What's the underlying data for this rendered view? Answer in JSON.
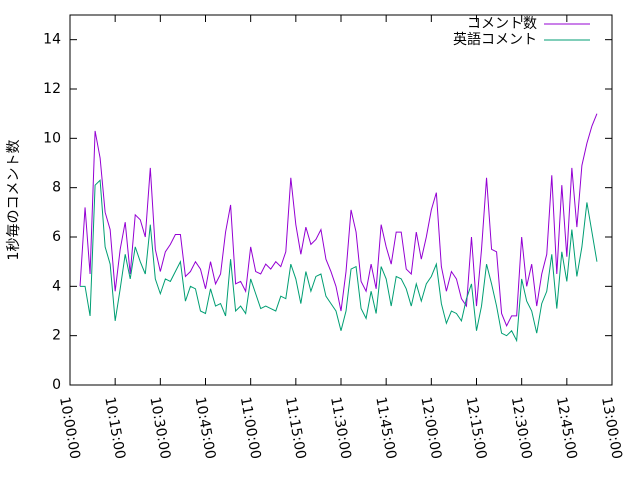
{
  "chart_data": {
    "type": "line",
    "ylabel": "1秒毎のコメント数",
    "x": [
      "10:03:20",
      "10:05:00",
      "10:06:40",
      "10:08:20",
      "10:10:00",
      "10:11:40",
      "10:13:20",
      "10:15:00",
      "10:16:40",
      "10:18:20",
      "10:20:00",
      "10:21:40",
      "10:23:20",
      "10:25:00",
      "10:26:40",
      "10:28:20",
      "10:30:00",
      "10:31:40",
      "10:33:20",
      "10:35:00",
      "10:36:40",
      "10:38:20",
      "10:40:00",
      "10:41:40",
      "10:43:20",
      "10:45:00",
      "10:46:40",
      "10:48:20",
      "10:50:00",
      "10:51:40",
      "10:53:20",
      "10:55:00",
      "10:56:40",
      "10:58:20",
      "11:00:00",
      "11:01:40",
      "11:03:20",
      "11:05:00",
      "11:06:40",
      "11:08:20",
      "11:10:00",
      "11:11:40",
      "11:13:20",
      "11:15:00",
      "11:16:40",
      "11:18:20",
      "11:20:00",
      "11:21:40",
      "11:23:20",
      "11:25:00",
      "11:26:40",
      "11:28:20",
      "11:30:00",
      "11:31:40",
      "11:33:20",
      "11:35:00",
      "11:36:40",
      "11:38:20",
      "11:40:00",
      "11:41:40",
      "11:43:20",
      "11:45:00",
      "11:46:40",
      "11:48:20",
      "11:50:00",
      "11:51:40",
      "11:53:20",
      "11:55:00",
      "11:56:40",
      "11:58:20",
      "12:00:00",
      "12:01:40",
      "12:03:20",
      "12:05:00",
      "12:06:40",
      "12:08:20",
      "12:10:00",
      "12:11:40",
      "12:13:20",
      "12:15:00",
      "12:16:40",
      "12:18:20",
      "12:20:00",
      "12:21:40",
      "12:23:20",
      "12:25:00",
      "12:26:40",
      "12:28:20",
      "12:30:00",
      "12:31:40",
      "12:33:20",
      "12:35:00",
      "12:36:40",
      "12:38:20",
      "12:40:00",
      "12:41:40",
      "12:43:20",
      "12:45:00",
      "12:46:40",
      "12:48:20",
      "12:50:00",
      "12:51:40",
      "12:53:20",
      "12:55:00"
    ],
    "series": [
      {
        "name": "コメント数",
        "color": "#9400d3",
        "values": [
          4,
          7.2,
          4.5,
          10.3,
          9.2,
          7,
          6.3,
          3.8,
          5.5,
          6.6,
          4.5,
          6.9,
          6.7,
          6,
          8.8,
          5.5,
          4.6,
          5.4,
          5.7,
          6.1,
          6.1,
          4.4,
          4.6,
          5,
          4.7,
          3.9,
          5,
          4.1,
          4.5,
          6.2,
          7.3,
          4.1,
          4.2,
          3.8,
          5.6,
          4.6,
          4.5,
          4.9,
          4.7,
          5,
          4.8,
          5.4,
          8.4,
          6.5,
          5.3,
          6.4,
          5.7,
          5.9,
          6.3,
          5.1,
          4.6,
          4,
          3,
          4.6,
          7.1,
          6.2,
          4.2,
          3.8,
          4.9,
          3.9,
          6.5,
          5.6,
          4.9,
          6.2,
          6.2,
          4.7,
          4.5,
          6.2,
          5.1,
          6,
          7.1,
          7.8,
          4.8,
          3.8,
          4.6,
          4.3,
          3.5,
          3.2,
          6,
          3.2,
          5.5,
          8.4,
          5.5,
          5.4,
          2.9,
          2.4,
          2.8,
          2.8,
          6,
          4,
          4.9,
          3.2,
          4.5,
          5.3,
          8.5,
          4.5,
          8.1,
          5.2,
          8.8,
          6.4,
          8.9,
          9.8,
          10.5,
          11
        ]
      },
      {
        "name": "英語コメント",
        "color": "#009e73",
        "values": [
          4,
          4,
          2.8,
          8.1,
          8.3,
          5.6,
          4.9,
          2.6,
          3.9,
          5.3,
          4.3,
          5.6,
          5,
          4.5,
          6.5,
          4.3,
          3.7,
          4.3,
          4.2,
          4.6,
          5,
          3.4,
          4,
          3.9,
          3,
          2.9,
          3.9,
          3.2,
          3.3,
          2.8,
          5.1,
          3,
          3.2,
          2.9,
          4.3,
          3.7,
          3.1,
          3.2,
          3.1,
          3,
          3.6,
          3.5,
          4.9,
          4.3,
          3.3,
          4.6,
          3.8,
          4.4,
          4.5,
          3.6,
          3.3,
          3,
          2.2,
          3,
          4.7,
          4.8,
          3.1,
          2.7,
          3.8,
          2.9,
          4.8,
          4.3,
          3.2,
          4.4,
          4.3,
          3.9,
          3.2,
          4.1,
          3.4,
          4.1,
          4.4,
          4.9,
          3.3,
          2.5,
          3,
          2.9,
          2.6,
          3.5,
          4.1,
          2.2,
          3.2,
          4.9,
          4.1,
          3.2,
          2.1,
          2,
          2.2,
          1.8,
          4.3,
          3.4,
          3,
          2.1,
          3.3,
          3.8,
          5.3,
          3.1,
          5.4,
          4.2,
          6.3,
          4.4,
          5.6,
          7.4,
          6.2,
          5
        ]
      }
    ],
    "xlim": [
      "10:00:00",
      "13:00:00"
    ],
    "xticks": [
      "10:00:00",
      "10:15:00",
      "10:30:00",
      "10:45:00",
      "11:00:00",
      "11:15:00",
      "11:30:00",
      "11:45:00",
      "12:00:00",
      "12:15:00",
      "12:30:00",
      "12:45:00",
      "13:00:00"
    ],
    "ylim": [
      0,
      15
    ],
    "yticks": [
      0,
      2,
      4,
      6,
      8,
      10,
      12,
      14
    ],
    "legend": "top-right"
  }
}
